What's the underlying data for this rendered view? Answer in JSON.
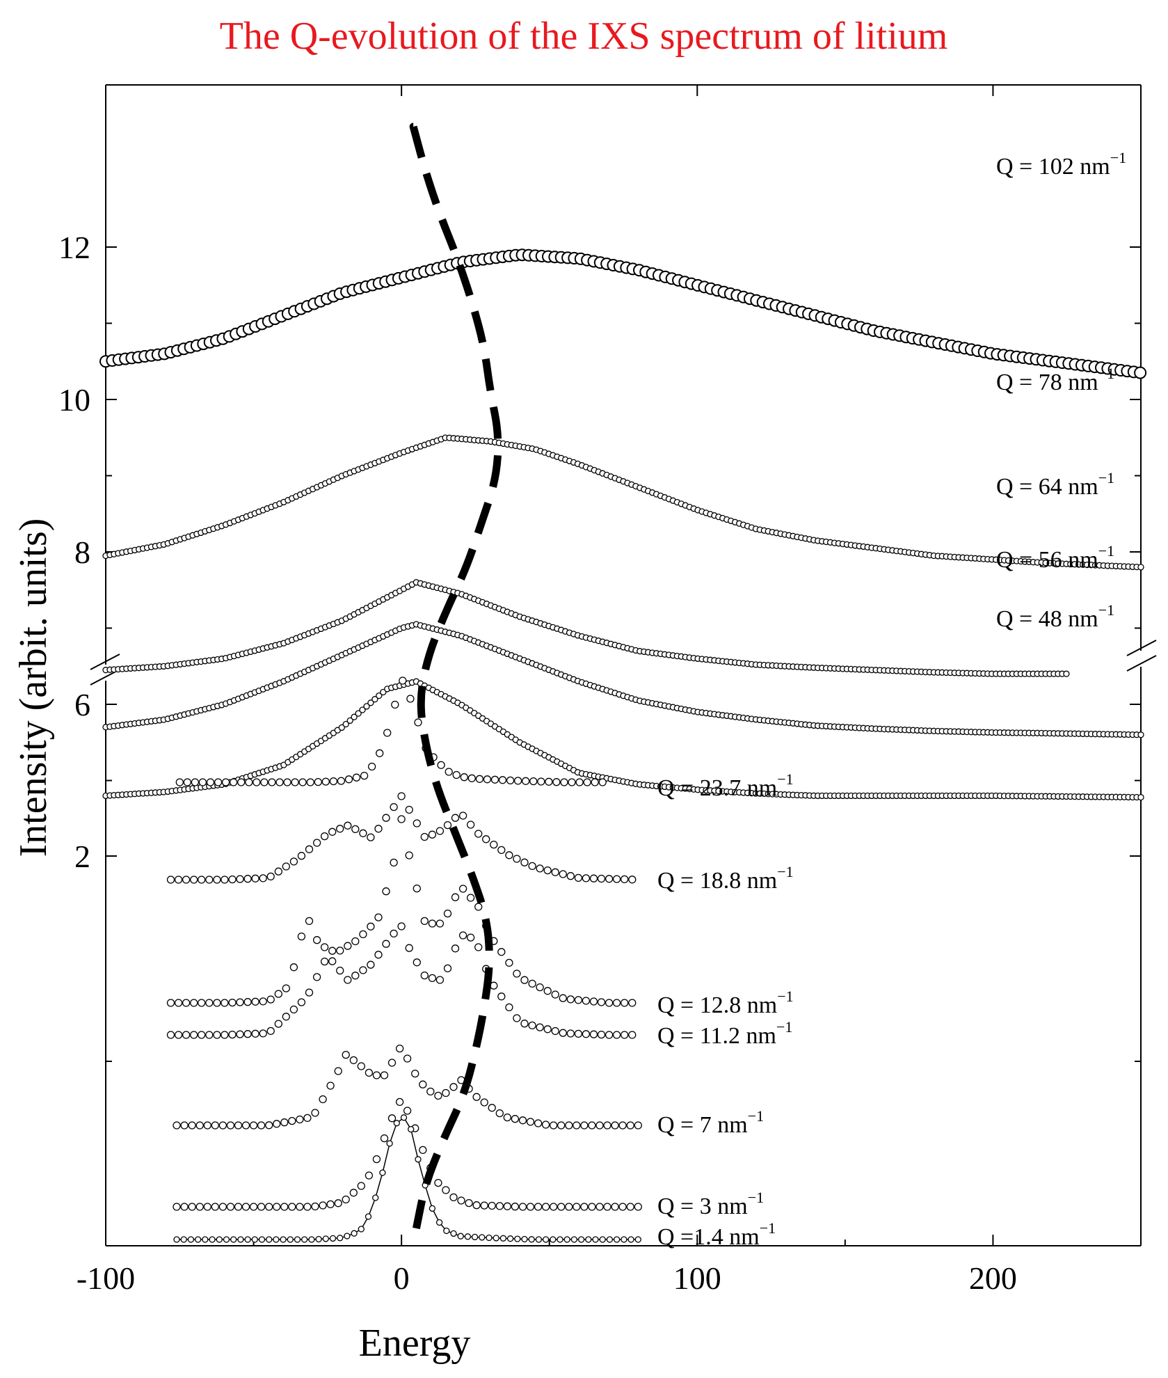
{
  "chart_data": {
    "type": "scatter",
    "title": "The Q-evolution of the IXS spectrum of litium",
    "xlabel": "Energy",
    "ylabel": "Intensity (arbit. units)",
    "xlim": [
      -100,
      250
    ],
    "ylim_upper": [
      4.2,
      12
    ],
    "x_ticks": [
      -100,
      0,
      100,
      200
    ],
    "y_ticks_labeled": [
      2,
      6,
      8,
      10,
      12
    ],
    "axis_break": true,
    "grid": false,
    "series": [
      {
        "name": "Q = 102 nm",
        "unit_sup": "−1",
        "marker": "large-open-circle",
        "x": [
          -100,
          -80,
          -60,
          -40,
          -20,
          0,
          20,
          40,
          60,
          80,
          100,
          120,
          140,
          160,
          180,
          200,
          220,
          240,
          250
        ],
        "y": [
          10.5,
          10.6,
          10.8,
          11.1,
          11.4,
          11.6,
          11.8,
          11.9,
          11.85,
          11.7,
          11.5,
          11.3,
          11.1,
          10.9,
          10.75,
          10.6,
          10.5,
          10.4,
          10.35
        ]
      },
      {
        "name": "Q = 78 nm",
        "unit_sup": "−1",
        "marker": "small-open-circle",
        "x": [
          -100,
          -80,
          -60,
          -40,
          -20,
          0,
          15,
          30,
          45,
          60,
          80,
          100,
          120,
          140,
          160,
          180,
          200,
          220,
          250
        ],
        "y": [
          7.95,
          8.1,
          8.35,
          8.65,
          9.0,
          9.3,
          9.5,
          9.45,
          9.35,
          9.15,
          8.85,
          8.55,
          8.3,
          8.15,
          8.05,
          7.95,
          7.9,
          7.85,
          7.8
        ]
      },
      {
        "name": "Q = 64 nm",
        "unit_sup": "−1",
        "marker": "small-open-circle",
        "x": [
          -100,
          -80,
          -60,
          -40,
          -20,
          0,
          5,
          20,
          40,
          60,
          80,
          100,
          120,
          140,
          160,
          180,
          200,
          226
        ],
        "y": [
          6.45,
          6.5,
          6.6,
          6.8,
          7.1,
          7.5,
          7.6,
          7.45,
          7.15,
          6.9,
          6.7,
          6.6,
          6.52,
          6.48,
          6.45,
          6.42,
          6.4,
          6.4
        ]
      },
      {
        "name": "Q = 56 nm",
        "unit_sup": "−1",
        "marker": "small-open-circle",
        "x": [
          -100,
          -80,
          -60,
          -40,
          -20,
          0,
          5,
          20,
          40,
          60,
          80,
          100,
          120,
          140,
          160,
          180,
          200,
          220,
          250
        ],
        "y": [
          5.7,
          5.8,
          6.0,
          6.3,
          6.65,
          7.0,
          7.05,
          6.9,
          6.6,
          6.3,
          6.05,
          5.9,
          5.8,
          5.72,
          5.68,
          5.65,
          5.63,
          5.62,
          5.6
        ]
      },
      {
        "name": "Q = 48 nm",
        "unit_sup": "−1",
        "marker": "small-open-circle",
        "x": [
          -100,
          -80,
          -60,
          -40,
          -20,
          -5,
          5,
          20,
          40,
          60,
          80,
          100,
          120,
          140,
          160,
          200,
          250
        ],
        "y": [
          4.8,
          4.85,
          4.95,
          5.2,
          5.7,
          6.2,
          6.3,
          6.0,
          5.5,
          5.1,
          4.95,
          4.88,
          4.83,
          4.8,
          4.8,
          4.8,
          4.78
        ]
      },
      {
        "name": "Q = 23.7 nm",
        "unit_sup": "−1",
        "marker": "small-open-circle",
        "x": [
          -75,
          -60,
          -45,
          -30,
          -20,
          -12,
          -8,
          -4,
          0,
          4,
          8,
          12,
          16,
          20,
          25,
          30,
          40,
          55,
          70
        ],
        "y": [
          0,
          0,
          0,
          0,
          0.02,
          0.1,
          0.35,
          0.8,
          1.5,
          1.1,
          0.5,
          0.3,
          0.15,
          0.08,
          0.05,
          0.04,
          0.02,
          0,
          0
        ]
      },
      {
        "name": "Q = 18.8 nm",
        "unit_sup": "−1",
        "marker": "small-open-circle",
        "x": [
          -78,
          -60,
          -45,
          -35,
          -25,
          -18,
          -10,
          -4,
          0,
          4,
          8,
          14,
          20,
          26,
          30,
          36,
          45,
          60,
          80
        ],
        "y": [
          0,
          0,
          0.02,
          0.25,
          0.55,
          0.65,
          0.5,
          0.8,
          1.0,
          0.75,
          0.5,
          0.6,
          0.8,
          0.55,
          0.45,
          0.3,
          0.15,
          0.02,
          0
        ]
      },
      {
        "name": "Q = 12.8 nm",
        "unit_sup": "−1",
        "marker": "small-open-circle",
        "x": [
          -78,
          -60,
          -45,
          -38,
          -32,
          -28,
          -22,
          -15,
          -8,
          -3,
          0,
          3,
          8,
          14,
          20,
          26,
          30,
          40,
          55,
          70,
          80
        ],
        "y": [
          0,
          0,
          0.02,
          0.2,
          1.05,
          0.7,
          0.6,
          0.75,
          1.0,
          1.6,
          2.2,
          1.7,
          0.95,
          0.95,
          1.4,
          1.15,
          0.8,
          0.3,
          0.05,
          0,
          0
        ]
      },
      {
        "name": "Q = 11.2 nm",
        "unit_sup": "−1",
        "marker": "small-open-circle",
        "x": [
          -78,
          -60,
          -45,
          -32,
          -25,
          -18,
          -10,
          -3,
          0,
          3,
          8,
          14,
          20,
          25,
          30,
          40,
          55,
          70,
          80
        ],
        "y": [
          0,
          0,
          0.02,
          0.45,
          0.95,
          0.65,
          0.85,
          1.2,
          1.3,
          1.0,
          0.7,
          0.65,
          1.2,
          1.15,
          0.65,
          0.15,
          0.02,
          0,
          0
        ]
      },
      {
        "name": "Q = 7 nm",
        "unit_sup": "−1",
        "marker": "small-open-circle",
        "x": [
          -76,
          -60,
          -45,
          -30,
          -22,
          -19,
          -15,
          -10,
          -5,
          -2,
          0,
          4,
          8,
          12,
          16,
          20,
          25,
          35,
          50,
          65,
          80
        ],
        "y": [
          0,
          0,
          0,
          0.1,
          0.6,
          0.85,
          0.75,
          0.6,
          0.6,
          0.85,
          0.95,
          0.65,
          0.45,
          0.35,
          0.4,
          0.55,
          0.35,
          0.1,
          0,
          0,
          0
        ]
      },
      {
        "name": "Q = 3 nm",
        "unit_sup": "−1",
        "marker": "small-open-circle",
        "x": [
          -76,
          -60,
          -45,
          -30,
          -20,
          -12,
          -8,
          -4,
          0,
          4,
          8,
          12,
          18,
          25,
          40,
          60,
          80
        ],
        "y": [
          0,
          0,
          0,
          0,
          0.05,
          0.3,
          0.6,
          1.0,
          1.3,
          1.0,
          0.6,
          0.3,
          0.1,
          0.02,
          0,
          0,
          0
        ]
      },
      {
        "name": "Q =1.4 nm",
        "unit_sup": "−1",
        "marker": "small-open-circle-line",
        "x": [
          -76,
          -60,
          -45,
          -30,
          -20,
          -14,
          -10,
          -6,
          -3,
          0,
          3,
          6,
          10,
          14,
          20,
          30,
          45,
          60,
          80
        ],
        "y": [
          0,
          0,
          0,
          0,
          0.02,
          0.1,
          0.35,
          0.85,
          1.3,
          1.5,
          1.35,
          0.9,
          0.4,
          0.12,
          0.04,
          0.02,
          0,
          0,
          0
        ]
      }
    ],
    "dispersion_curve": {
      "name": "peak dispersion",
      "style": "thick-dashed",
      "x": [
        4,
        8,
        13,
        19,
        24,
        28,
        30,
        33,
        32,
        27,
        22,
        15,
        9,
        6,
        8,
        12,
        18,
        24,
        29,
        30,
        28,
        25,
        21,
        14,
        8,
        5
      ]
    }
  }
}
